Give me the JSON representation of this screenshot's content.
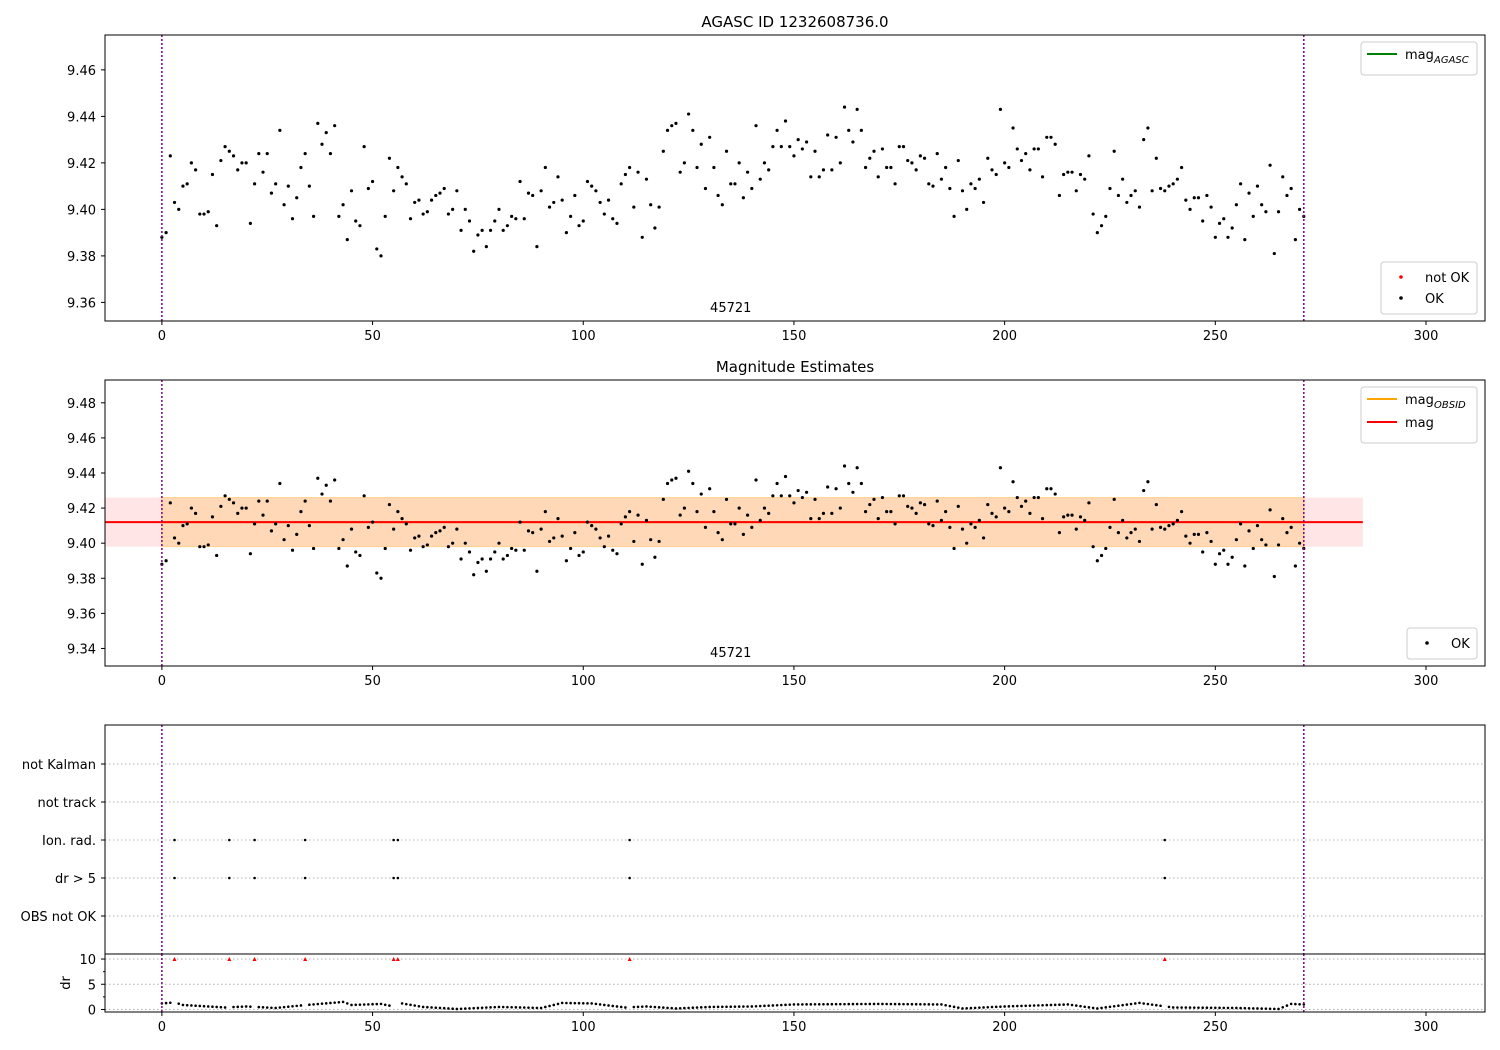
{
  "chart_data": [
    {
      "type": "scatter",
      "title": "AGASC ID 1232608736.0",
      "xlim": [
        -13.5,
        314
      ],
      "ylim": [
        9.352,
        9.475
      ],
      "xticks": [
        0,
        50,
        100,
        150,
        200,
        250,
        300
      ],
      "yticks": [
        9.36,
        9.38,
        9.4,
        9.42,
        9.44,
        9.46
      ],
      "vlines": [
        0,
        271
      ],
      "obsid_label": {
        "text": "45721",
        "x": 135
      },
      "legend_upper": [
        {
          "label": "mag",
          "sub": "AGASC",
          "color": "#008000"
        }
      ],
      "legend_lower": [
        {
          "label": "not OK",
          "color": "#ff0000"
        },
        {
          "label": "OK",
          "color": "#000000"
        }
      ],
      "series": [
        {
          "name": "OK",
          "color": "#000000",
          "y": [
            9.388,
            9.39,
            9.423,
            9.403,
            9.4,
            9.41,
            9.411,
            9.42,
            9.417,
            9.398,
            9.398,
            9.399,
            9.415,
            9.393,
            9.421,
            9.427,
            9.425,
            9.423,
            9.417,
            9.42,
            9.42,
            9.394,
            9.411,
            9.424,
            9.416,
            9.424,
            9.407,
            9.411,
            9.434,
            9.402,
            9.41,
            9.396,
            9.405,
            9.418,
            9.424,
            9.41,
            9.397,
            9.437,
            9.428,
            9.433,
            9.424,
            9.436,
            9.397,
            9.402,
            9.387,
            9.408,
            9.395,
            9.393,
            9.427,
            9.409,
            9.412,
            9.383,
            9.38,
            9.397,
            9.422,
            9.408,
            9.418,
            9.414,
            9.411,
            9.396,
            9.403,
            9.404,
            9.398,
            9.399,
            9.404,
            9.406,
            9.407,
            9.409,
            9.398,
            9.4,
            9.408,
            9.391,
            9.4,
            9.395,
            9.382,
            9.389,
            9.391,
            9.384,
            9.391,
            9.395,
            9.4,
            9.391,
            9.393,
            9.397,
            9.396,
            9.412,
            9.396,
            9.407,
            9.406,
            9.384,
            9.408,
            9.418,
            9.401,
            9.403,
            9.414,
            9.404,
            9.39,
            9.397,
            9.406,
            9.393,
            9.395,
            9.412,
            9.41,
            9.408,
            9.403,
            9.398,
            9.404,
            9.396,
            9.394,
            9.411,
            9.415,
            9.418,
            9.401,
            9.416,
            9.388,
            9.413,
            9.402,
            9.392,
            9.401,
            9.425,
            9.434,
            9.436,
            9.437,
            9.416,
            9.42,
            9.441,
            9.434,
            9.418,
            9.428,
            9.409,
            9.431,
            9.418,
            9.406,
            9.402,
            9.425,
            9.411,
            9.411,
            9.42,
            9.405,
            9.416,
            9.409,
            9.436,
            9.413,
            9.42,
            9.417,
            9.427,
            9.434,
            9.427,
            9.438,
            9.427,
            9.423,
            9.43,
            9.426,
            9.429,
            9.414,
            9.425,
            9.414,
            9.417,
            9.432,
            9.417,
            9.431,
            9.42,
            9.444,
            9.434,
            9.429,
            9.443,
            9.434,
            9.418,
            9.422,
            9.425,
            9.414,
            9.426,
            9.418,
            9.418,
            9.411,
            9.427,
            9.427,
            9.421,
            9.42,
            9.417,
            9.423,
            9.422,
            9.411,
            9.41,
            9.424,
            9.413,
            9.418,
            9.409,
            9.397,
            9.421,
            9.408,
            9.4,
            9.411,
            9.409,
            9.413,
            9.403,
            9.422,
            9.417,
            9.415,
            9.443,
            9.42,
            9.418,
            9.435,
            9.426,
            9.421,
            9.424,
            9.417,
            9.426,
            9.426,
            9.414,
            9.431,
            9.431,
            9.428,
            9.406,
            9.415,
            9.416,
            9.416,
            9.408,
            9.415,
            9.413,
            9.423,
            9.398,
            9.39,
            9.393,
            9.397,
            9.409,
            9.425,
            9.406,
            9.413,
            9.403,
            9.406,
            9.408,
            9.401,
            9.43,
            9.435,
            9.408,
            9.422,
            9.409,
            9.408,
            9.41,
            9.411,
            9.413,
            9.418,
            9.404,
            9.4,
            9.405,
            9.405,
            9.395,
            9.406,
            9.401,
            9.388,
            9.394,
            9.396,
            9.388,
            9.392,
            9.402,
            9.411,
            9.387,
            9.407,
            9.397,
            9.41,
            9.402,
            9.399,
            9.419,
            9.381,
            9.399,
            9.414,
            9.406,
            9.409,
            9.387,
            9.4,
            9.397
          ]
        }
      ]
    },
    {
      "type": "scatter",
      "title": "Magnitude Estimates",
      "xlim": [
        -13.5,
        314
      ],
      "ylim": [
        9.33,
        9.493
      ],
      "xticks": [
        0,
        50,
        100,
        150,
        200,
        250,
        300
      ],
      "yticks": [
        9.34,
        9.36,
        9.38,
        9.4,
        9.42,
        9.44,
        9.46,
        9.48
      ],
      "vlines": [
        0,
        271
      ],
      "obsid_label": {
        "text": "45721",
        "x": 135
      },
      "mag_line": {
        "y": 9.412,
        "band": [
          9.398,
          9.426
        ],
        "x_range": [
          -13.5,
          285
        ],
        "color": "#ff0000"
      },
      "mag_obsid": {
        "y": 9.412,
        "band": [
          9.398,
          9.426
        ],
        "x_range": [
          0,
          271
        ],
        "color": "#ffa500"
      },
      "legend_upper": [
        {
          "label": "mag",
          "sub": "OBSID",
          "color": "#ffa500"
        },
        {
          "label": "mag",
          "sub": "",
          "color": "#ff0000"
        }
      ],
      "legend_lower": [
        {
          "label": "OK",
          "color": "#000000"
        }
      ],
      "series": [
        {
          "name": "OK",
          "color": "#000000",
          "y": [
            9.388,
            9.39,
            9.423,
            9.403,
            9.4,
            9.41,
            9.411,
            9.42,
            9.417,
            9.398,
            9.398,
            9.399,
            9.415,
            9.393,
            9.421,
            9.427,
            9.425,
            9.423,
            9.417,
            9.42,
            9.42,
            9.394,
            9.411,
            9.424,
            9.416,
            9.424,
            9.407,
            9.411,
            9.434,
            9.402,
            9.41,
            9.396,
            9.405,
            9.418,
            9.424,
            9.41,
            9.397,
            9.437,
            9.428,
            9.433,
            9.424,
            9.436,
            9.397,
            9.402,
            9.387,
            9.408,
            9.395,
            9.393,
            9.427,
            9.409,
            9.412,
            9.383,
            9.38,
            9.397,
            9.422,
            9.408,
            9.418,
            9.414,
            9.411,
            9.396,
            9.403,
            9.404,
            9.398,
            9.399,
            9.404,
            9.406,
            9.407,
            9.409,
            9.398,
            9.4,
            9.408,
            9.391,
            9.4,
            9.395,
            9.382,
            9.389,
            9.391,
            9.384,
            9.391,
            9.395,
            9.4,
            9.391,
            9.393,
            9.397,
            9.396,
            9.412,
            9.396,
            9.407,
            9.406,
            9.384,
            9.408,
            9.418,
            9.401,
            9.403,
            9.414,
            9.404,
            9.39,
            9.397,
            9.406,
            9.393,
            9.395,
            9.412,
            9.41,
            9.408,
            9.403,
            9.398,
            9.404,
            9.396,
            9.394,
            9.411,
            9.415,
            9.418,
            9.401,
            9.416,
            9.388,
            9.413,
            9.402,
            9.392,
            9.401,
            9.425,
            9.434,
            9.436,
            9.437,
            9.416,
            9.42,
            9.441,
            9.434,
            9.418,
            9.428,
            9.409,
            9.431,
            9.418,
            9.406,
            9.402,
            9.425,
            9.411,
            9.411,
            9.42,
            9.405,
            9.416,
            9.409,
            9.436,
            9.413,
            9.42,
            9.417,
            9.427,
            9.434,
            9.427,
            9.438,
            9.427,
            9.423,
            9.43,
            9.426,
            9.429,
            9.414,
            9.425,
            9.414,
            9.417,
            9.432,
            9.417,
            9.431,
            9.42,
            9.444,
            9.434,
            9.429,
            9.443,
            9.434,
            9.418,
            9.422,
            9.425,
            9.414,
            9.426,
            9.418,
            9.418,
            9.411,
            9.427,
            9.427,
            9.421,
            9.42,
            9.417,
            9.423,
            9.422,
            9.411,
            9.41,
            9.424,
            9.413,
            9.418,
            9.409,
            9.397,
            9.421,
            9.408,
            9.4,
            9.411,
            9.409,
            9.413,
            9.403,
            9.422,
            9.417,
            9.415,
            9.443,
            9.42,
            9.418,
            9.435,
            9.426,
            9.421,
            9.424,
            9.417,
            9.426,
            9.426,
            9.414,
            9.431,
            9.431,
            9.428,
            9.406,
            9.415,
            9.416,
            9.416,
            9.408,
            9.415,
            9.413,
            9.423,
            9.398,
            9.39,
            9.393,
            9.397,
            9.409,
            9.425,
            9.406,
            9.413,
            9.403,
            9.406,
            9.408,
            9.401,
            9.43,
            9.435,
            9.408,
            9.422,
            9.409,
            9.408,
            9.41,
            9.411,
            9.413,
            9.418,
            9.404,
            9.4,
            9.405,
            9.405,
            9.395,
            9.406,
            9.401,
            9.388,
            9.394,
            9.396,
            9.388,
            9.392,
            9.402,
            9.411,
            9.387,
            9.407,
            9.397,
            9.41,
            9.402,
            9.399,
            9.419,
            9.381,
            9.399,
            9.414,
            9.406,
            9.409,
            9.387,
            9.4,
            9.397
          ]
        }
      ]
    },
    {
      "type": "scatter",
      "title": "",
      "xlim": [
        -13.5,
        314
      ],
      "xticks": [
        0,
        50,
        100,
        150,
        200,
        250,
        300
      ],
      "vlines": [
        0,
        271
      ],
      "flag_rows": [
        "not Kalman",
        "not track",
        "Ion. rad.",
        "dr > 5",
        "OBS not OK"
      ],
      "flags": {
        "not Kalman": [],
        "not track": [],
        "Ion. rad.": [
          3,
          16,
          22,
          34,
          55,
          56,
          111,
          238
        ],
        "dr > 5": [
          3,
          16,
          22,
          34,
          55,
          56,
          111,
          238
        ],
        "OBS not OK": []
      },
      "dr_ylim": [
        -0.5,
        11
      ],
      "dr_yticks": [
        0,
        5,
        10
      ],
      "dr_ylabel": "dr",
      "dr_clipped_x": [
        3,
        16,
        22,
        34,
        55,
        56,
        111,
        238
      ],
      "dr_clip_value": 10,
      "dr_segments": [
        [
          0,
          1.2
        ],
        [
          3,
          1.4
        ],
        [
          5,
          0.9
        ],
        [
          15,
          0.4
        ],
        [
          20,
          0.6
        ],
        [
          27,
          0.3
        ],
        [
          33,
          0.8
        ],
        [
          43,
          1.5
        ],
        [
          45,
          0.9
        ],
        [
          52,
          1.1
        ],
        [
          55,
          0.6
        ],
        [
          57,
          1.2
        ],
        [
          62,
          0.5
        ],
        [
          70,
          0.1
        ],
        [
          80,
          0.5
        ],
        [
          90,
          0.3
        ],
        [
          95,
          1.3
        ],
        [
          102,
          1.2
        ],
        [
          110,
          0.4
        ],
        [
          115,
          0.6
        ],
        [
          122,
          0.2
        ],
        [
          130,
          0.5
        ],
        [
          140,
          0.6
        ],
        [
          150,
          1.0
        ],
        [
          170,
          1.1
        ],
        [
          185,
          1.0
        ],
        [
          190,
          0.2
        ],
        [
          200,
          0.6
        ],
        [
          215,
          1.0
        ],
        [
          222,
          0.2
        ],
        [
          232,
          1.3
        ],
        [
          240,
          0.4
        ],
        [
          255,
          0.3
        ],
        [
          265,
          0.1
        ],
        [
          268,
          1.1
        ],
        [
          271,
          1.0
        ]
      ]
    }
  ]
}
